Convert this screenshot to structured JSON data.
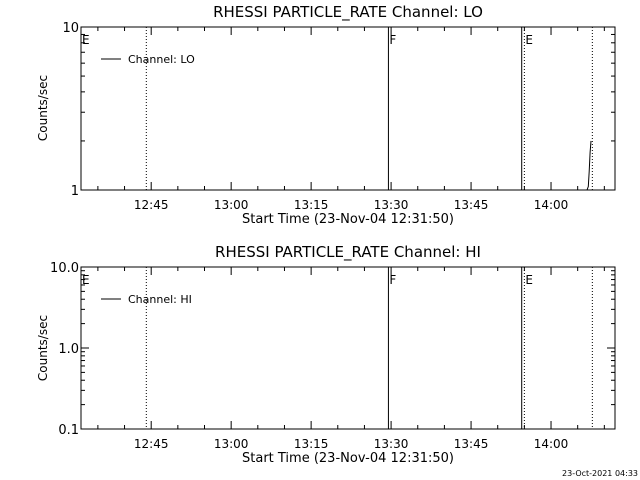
{
  "chart_data": [
    {
      "type": "line",
      "title": "RHESSI PARTICLE_RATE Channel: LO",
      "xlabel": "Start Time (23-Nov-04 12:31:50)",
      "ylabel": "Counts/sec",
      "yscale": "log",
      "xlim": [
        "12:31:50",
        "14:12:00"
      ],
      "ylim": [
        1,
        10
      ],
      "x_ticks": [
        "12:45",
        "13:00",
        "13:15",
        "13:30",
        "13:45",
        "14:00"
      ],
      "y_ticks": [
        "1",
        "10"
      ],
      "legend": "Channel: LO",
      "legend_position": "top-left",
      "markers": [
        {
          "label": "E",
          "time": "12:31:50",
          "style": "none"
        },
        {
          "label": "",
          "time": "12:44:05",
          "style": "dotted"
        },
        {
          "label": "F",
          "time": "13:29:30",
          "style": "solid"
        },
        {
          "label": "",
          "time": "13:54:30",
          "style": "solid"
        },
        {
          "label": "E",
          "time": "13:55:00",
          "style": "dotted"
        },
        {
          "label": "",
          "time": "14:07:45",
          "style": "dotted"
        }
      ],
      "series": [
        {
          "name": "Channel: LO",
          "x": [
            "14:06:45",
            "14:07:00",
            "14:07:10",
            "14:07:20",
            "14:07:30"
          ],
          "values": [
            1.0,
            1.05,
            1.3,
            1.7,
            2.0
          ]
        }
      ]
    },
    {
      "type": "line",
      "title": "RHESSI PARTICLE_RATE Channel: HI",
      "xlabel": "Start Time (23-Nov-04 12:31:50)",
      "ylabel": "Counts/sec",
      "yscale": "log",
      "xlim": [
        "12:31:50",
        "14:12:00"
      ],
      "ylim": [
        0.1,
        10
      ],
      "x_ticks": [
        "12:45",
        "13:00",
        "13:15",
        "13:30",
        "13:45",
        "14:00"
      ],
      "y_ticks": [
        "0.1",
        "1.0",
        "10.0"
      ],
      "legend": "Channel: HI",
      "legend_position": "top-left",
      "markers": [
        {
          "label": "E",
          "time": "12:31:50",
          "style": "none"
        },
        {
          "label": "",
          "time": "12:44:05",
          "style": "dotted"
        },
        {
          "label": "F",
          "time": "13:29:30",
          "style": "solid"
        },
        {
          "label": "",
          "time": "13:54:30",
          "style": "solid"
        },
        {
          "label": "E",
          "time": "13:55:00",
          "style": "dotted"
        },
        {
          "label": "",
          "time": "14:07:45",
          "style": "dotted"
        }
      ],
      "series": [
        {
          "name": "Channel: HI",
          "x": [],
          "values": []
        }
      ]
    }
  ],
  "footer": {
    "timestamp": "23-Oct-2021 04:33"
  }
}
